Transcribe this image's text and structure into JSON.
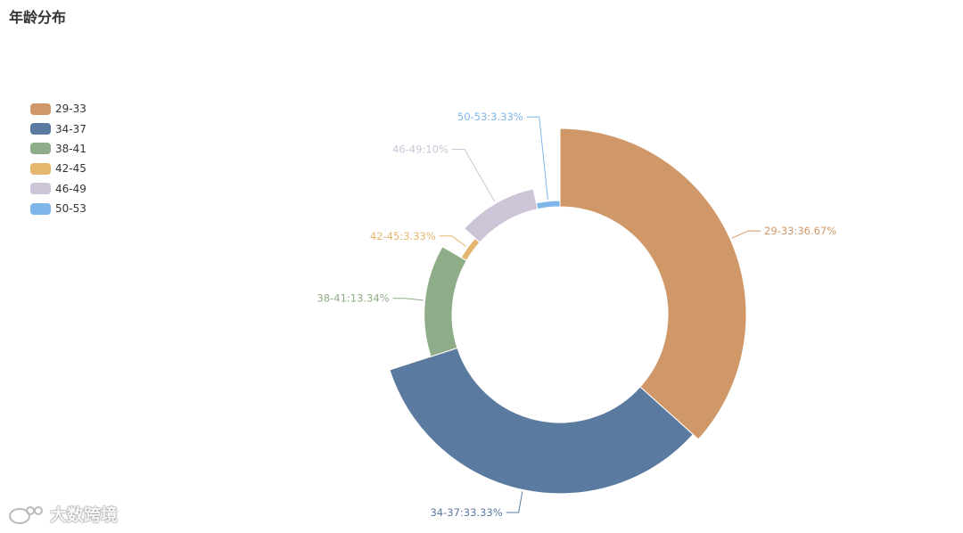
{
  "title": "年龄分布",
  "chart_data": {
    "type": "pie",
    "variant": "rose-donut",
    "title": "年龄分布",
    "legend_position": "left",
    "series": [
      {
        "name": "29-33",
        "value": 36.67,
        "label": "29-33:36.67%",
        "color": "#d09869"
      },
      {
        "name": "34-37",
        "value": 33.33,
        "label": "34-37:33.33%",
        "color": "#5b7a9f"
      },
      {
        "name": "38-41",
        "value": 13.34,
        "label": "38-41:13.34%",
        "color": "#8fac88"
      },
      {
        "name": "42-45",
        "value": 3.33,
        "label": "42-45:3.33%",
        "color": "#e5b76e"
      },
      {
        "name": "46-49",
        "value": 10,
        "label": "46-49:10%",
        "color": "#cdc4d7"
      },
      {
        "name": "50-53",
        "value": 3.33,
        "label": "50-53:3.33%",
        "color": "#7fb6ea"
      }
    ]
  },
  "watermark": {
    "text": "大数跨境",
    "icon": "weibo-logo-icon"
  }
}
